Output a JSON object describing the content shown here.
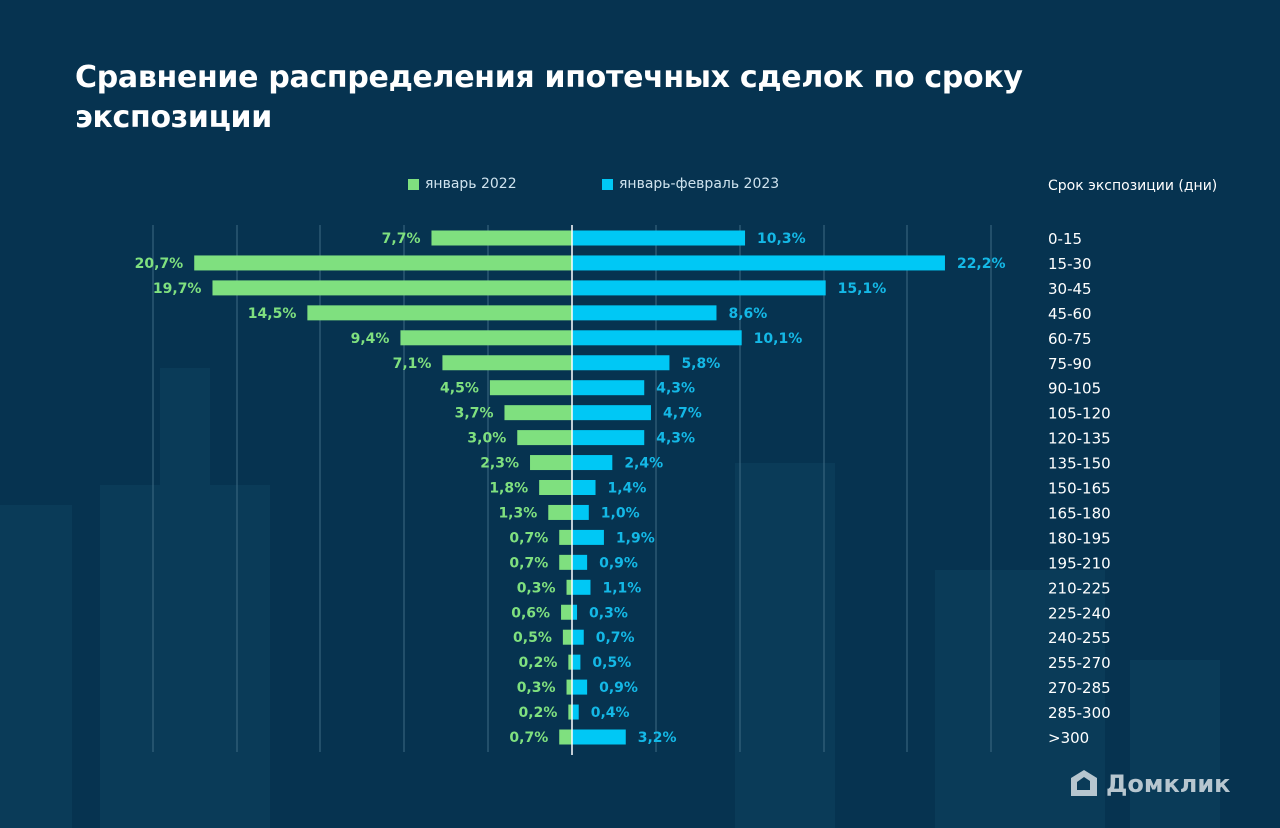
{
  "title": "Сравнение распределения ипотечных сделок по сроку экспозиции",
  "logo_text": "Домклик",
  "chart_data": {
    "type": "bar",
    "orientation": "horizontal-diverging",
    "title": "Сравнение распределения ипотечных сделок по сроку экспозиции",
    "category_axis_label": "Срок экспозиции (дни)",
    "categories": [
      "0-15",
      "15-30",
      "30-45",
      "45-60",
      "60-75",
      "75-90",
      "90-105",
      "105-120",
      "120-135",
      "135-150",
      "150-165",
      "165-180",
      "180-195",
      "195-210",
      "210-225",
      "225-240",
      "240-255",
      "255-270",
      "270-285",
      "285-300",
      ">300"
    ],
    "series": [
      {
        "name": "январь 2022",
        "color": "#7fe07f",
        "side": "left",
        "values": [
          7.7,
          20.7,
          19.7,
          14.5,
          9.4,
          7.1,
          4.5,
          3.7,
          3.0,
          2.3,
          1.8,
          1.3,
          0.7,
          0.7,
          0.3,
          0.6,
          0.5,
          0.2,
          0.3,
          0.2,
          0.7
        ],
        "labels": [
          "7,7%",
          "20,7%",
          "19,7%",
          "14,5%",
          "9,4%",
          "7,1%",
          "4,5%",
          "3,7%",
          "3,0%",
          "2,3%",
          "1,8%",
          "1,3%",
          "0,7%",
          "0,7%",
          "0,3%",
          "0,6%",
          "0,5%",
          "0,2%",
          "0,3%",
          "0,2%",
          "0,7%"
        ]
      },
      {
        "name": "январь-февраль 2023",
        "color": "#00c8f5",
        "side": "right",
        "values": [
          10.3,
          22.2,
          15.1,
          8.6,
          10.1,
          5.8,
          4.3,
          4.7,
          4.3,
          2.4,
          1.4,
          1.0,
          1.9,
          0.9,
          1.1,
          0.3,
          0.7,
          0.5,
          0.9,
          0.4,
          3.2
        ],
        "labels": [
          "10,3%",
          "22,2%",
          "15,1%",
          "8,6%",
          "10,1%",
          "5,8%",
          "4,3%",
          "4,7%",
          "4,3%",
          "2,4%",
          "1,4%",
          "1,0%",
          "1,9%",
          "0,9%",
          "1,1%",
          "0,3%",
          "0,7%",
          "0,5%",
          "0,9%",
          "0,4%",
          "3,2%"
        ]
      }
    ],
    "legend": "top",
    "grid": true
  }
}
